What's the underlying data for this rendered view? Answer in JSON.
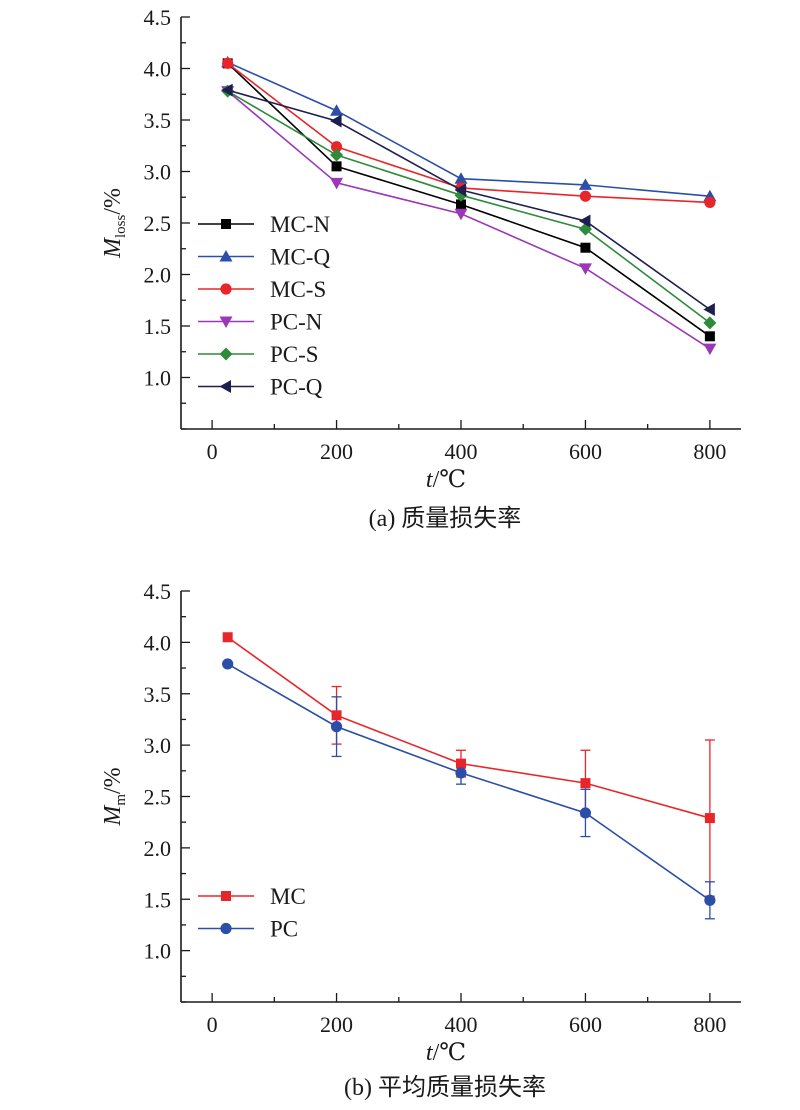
{
  "chart_data": [
    {
      "type": "line",
      "caption": "(a) 质量损失率",
      "ylabel_main": "M",
      "ylabel_sub": "loss",
      "ylabel_unit": "/%",
      "xlabel_main": "t",
      "xlabel_unit": "/℃",
      "xlim": [
        -50,
        850
      ],
      "ylim": [
        0.5,
        4.5
      ],
      "xticks": [
        0,
        200,
        400,
        600,
        800
      ],
      "yticks": [
        1.0,
        1.5,
        2.0,
        2.5,
        3.0,
        3.5,
        4.0,
        4.5
      ],
      "grid": false,
      "legend_position": "middle-left",
      "x": [
        25,
        200,
        400,
        600,
        800
      ],
      "series": [
        {
          "name": "MC-N",
          "marker": "square",
          "color": "#000000",
          "values": [
            4.05,
            3.05,
            2.68,
            2.26,
            1.4
          ]
        },
        {
          "name": "MC-Q",
          "marker": "triangle-up",
          "color": "#2b4fa8",
          "values": [
            4.06,
            3.59,
            2.93,
            2.87,
            2.76
          ]
        },
        {
          "name": "MC-S",
          "marker": "circle",
          "color": "#e8262a",
          "values": [
            4.05,
            3.24,
            2.84,
            2.76,
            2.7
          ]
        },
        {
          "name": "PC-N",
          "marker": "triangle-down",
          "color": "#9b38b8",
          "values": [
            3.78,
            2.89,
            2.59,
            2.06,
            1.28
          ]
        },
        {
          "name": "PC-S",
          "marker": "diamond",
          "color": "#2e8b3a",
          "values": [
            3.78,
            3.16,
            2.77,
            2.44,
            1.53
          ]
        },
        {
          "name": "PC-Q",
          "marker": "triangle-left",
          "color": "#1d1f4f",
          "values": [
            3.79,
            3.49,
            2.82,
            2.52,
            1.66
          ]
        }
      ]
    },
    {
      "type": "line",
      "caption": "(b) 平均质量损失率",
      "ylabel_main": "M",
      "ylabel_sub": "m",
      "ylabel_unit": "/%",
      "xlabel_main": "t",
      "xlabel_unit": "/℃",
      "xlim": [
        -50,
        850
      ],
      "ylim": [
        0.5,
        4.5
      ],
      "xticks": [
        0,
        200,
        400,
        600,
        800
      ],
      "yticks": [
        1.0,
        1.5,
        2.0,
        2.5,
        3.0,
        3.5,
        4.0,
        4.5
      ],
      "grid": false,
      "legend_position": "bottom-left",
      "x": [
        25,
        200,
        400,
        600,
        800
      ],
      "series": [
        {
          "name": "MC",
          "marker": "square",
          "color": "#e8262a",
          "values": [
            4.05,
            3.29,
            2.82,
            2.63,
            2.29
          ],
          "error": [
            0,
            0.28,
            0.13,
            0.32,
            0.76
          ]
        },
        {
          "name": "PC",
          "marker": "circle",
          "color": "#2b4fa8",
          "values": [
            3.79,
            3.18,
            2.73,
            2.34,
            1.49
          ],
          "error": [
            0,
            0.29,
            0.11,
            0.23,
            0.18
          ]
        }
      ]
    }
  ]
}
